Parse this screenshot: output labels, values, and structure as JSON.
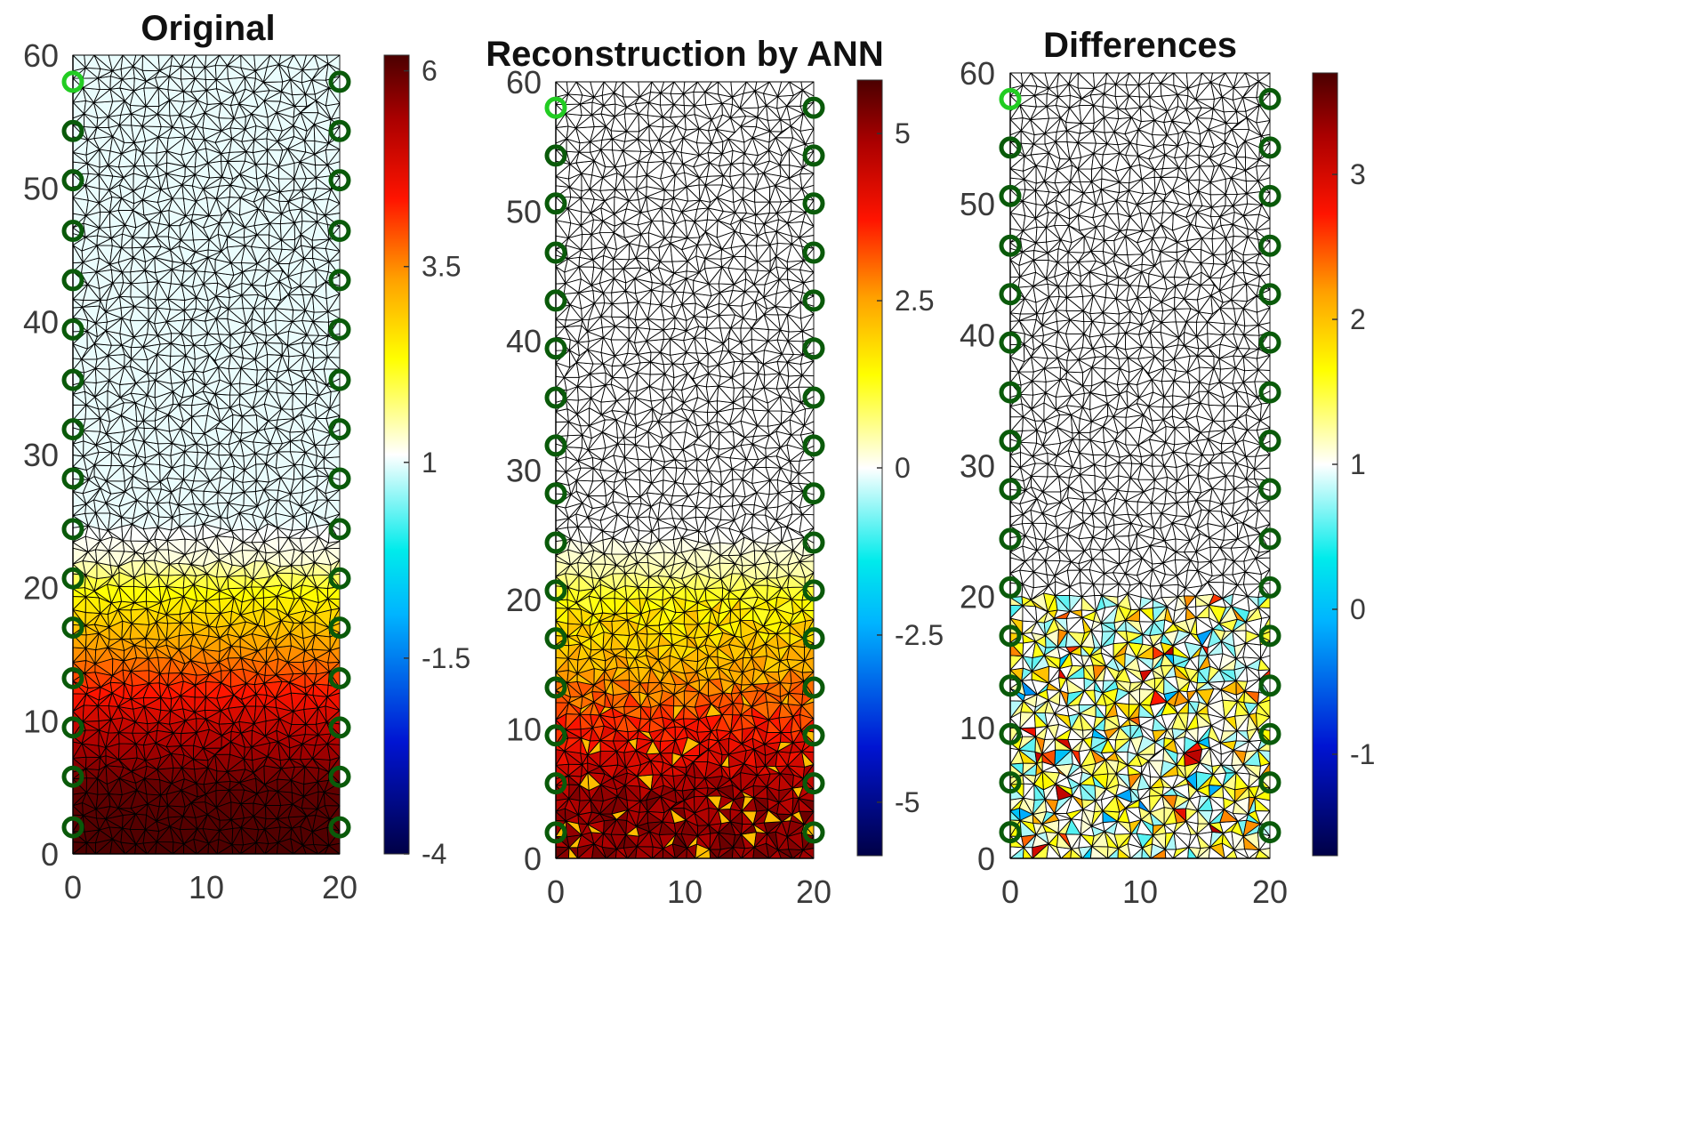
{
  "figure_description_free": true,
  "chart_data": [
    {
      "type": "heatmap",
      "title": "Original",
      "xlabel": "",
      "ylabel": "",
      "xlim": [
        0,
        20
      ],
      "ylim": [
        0,
        60
      ],
      "x_ticks": [
        "0",
        "10",
        "20"
      ],
      "y_ticks": [
        "0",
        "10",
        "20",
        "30",
        "40",
        "50",
        "60"
      ],
      "colorbar": {
        "min": -4,
        "max": 6.2,
        "ticks": [
          "6",
          "3.5",
          "1",
          "-1.5",
          "-4"
        ],
        "tick_values": [
          6,
          3.5,
          1,
          -1.5,
          -4
        ]
      },
      "field": {
        "profile": [
          [
            0,
            6.2
          ],
          [
            5,
            6.0
          ],
          [
            10,
            5.0
          ],
          [
            15,
            3.5
          ],
          [
            20,
            2.2
          ],
          [
            22,
            1.3
          ],
          [
            25,
            1.0
          ],
          [
            60,
            1.0
          ]
        ],
        "baseline": 1.0
      },
      "electrodes": {
        "x": [
          0,
          20
        ],
        "y": [
          2,
          5.8,
          9.5,
          13.2,
          17,
          20.7,
          24.4,
          28.2,
          31.9,
          35.6,
          39.4,
          43.1,
          46.8,
          50.6,
          54.3,
          58
        ],
        "highlight": {
          "side": 0,
          "y": 58
        }
      }
    },
    {
      "type": "heatmap",
      "title": "Reconstruction by ANN",
      "xlabel": "",
      "ylabel": "",
      "xlim": [
        0,
        20
      ],
      "ylim": [
        0,
        60
      ],
      "x_ticks": [
        "0",
        "10",
        "20"
      ],
      "y_ticks": [
        "0",
        "10",
        "20",
        "30",
        "40",
        "50",
        "60"
      ],
      "colorbar": {
        "min": -5.8,
        "max": 5.8,
        "ticks": [
          "5",
          "2.5",
          "0",
          "-2.5",
          "-5"
        ],
        "tick_values": [
          5,
          2.5,
          0,
          -2.5,
          -5
        ]
      },
      "field": {
        "profile": [
          [
            0,
            5.2
          ],
          [
            5,
            5.0
          ],
          [
            10,
            3.7
          ],
          [
            15,
            2.3
          ],
          [
            20,
            1.4
          ],
          [
            22,
            0.5
          ],
          [
            25,
            0.0
          ],
          [
            60,
            0.0
          ]
        ],
        "baseline": 0.0
      },
      "electrodes": {
        "x": [
          0,
          20
        ],
        "y": [
          2,
          5.8,
          9.5,
          13.2,
          17,
          20.7,
          24.4,
          28.2,
          31.9,
          35.6,
          39.4,
          43.1,
          46.8,
          50.6,
          54.3,
          58
        ],
        "highlight": {
          "side": 0,
          "y": 58
        }
      }
    },
    {
      "type": "heatmap",
      "title": "Differences",
      "xlabel": "",
      "ylabel": "",
      "xlim": [
        0,
        20
      ],
      "ylim": [
        0,
        60
      ],
      "x_ticks": [
        "0",
        "10",
        "20"
      ],
      "y_ticks": [
        "0",
        "10",
        "20",
        "30",
        "40",
        "50",
        "60"
      ],
      "colorbar": {
        "min": -1.7,
        "max": 3.7,
        "ticks": [
          "3",
          "2",
          "1",
          "0",
          "-1"
        ],
        "tick_values": [
          3,
          2,
          1,
          0,
          -1
        ]
      },
      "field": {
        "profile": [
          [
            0,
            1.0
          ],
          [
            60,
            1.0
          ]
        ],
        "baseline": 1.0,
        "speckle_below": 20
      },
      "electrodes": {
        "x": [
          0,
          20
        ],
        "y": [
          2,
          5.8,
          9.5,
          13.2,
          17,
          20.7,
          24.4,
          28.2,
          31.9,
          35.6,
          39.4,
          43.1,
          46.8,
          50.6,
          54.3,
          58
        ],
        "highlight": {
          "side": 0,
          "y": 58
        }
      }
    }
  ],
  "colors": {
    "electrode": "#0a5a0a",
    "electrode_highlight": "#22cc22",
    "mesh": "#000000"
  }
}
